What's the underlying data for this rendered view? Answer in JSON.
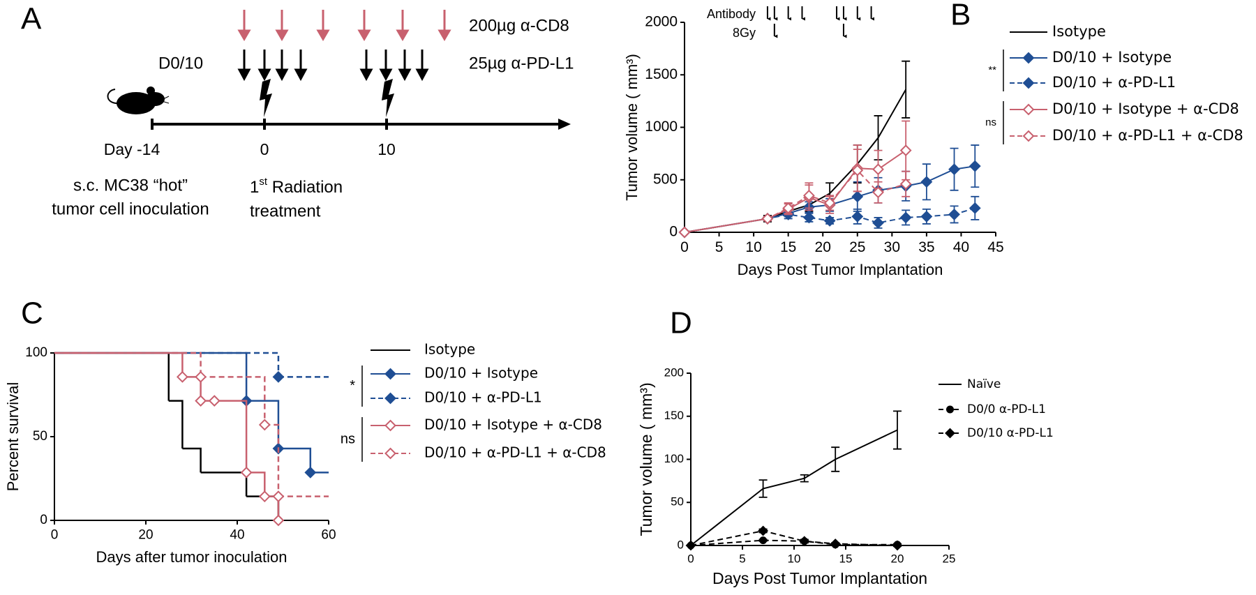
{
  "diagram": {
    "panel_label": "A",
    "cd8_label": "200µg α-CD8",
    "pdl1_label": "25µg α-PD-L1",
    "schedule_label": "D0/10",
    "day_labels": [
      "Day -14",
      "0",
      "10"
    ],
    "inoculation_label": [
      "s.c. MC38 “hot”",
      "tumor cell inoculation"
    ],
    "radiation_label": [
      "1",
      "st",
      " Radiation",
      "treatment"
    ]
  },
  "chart_data": [
    {
      "type": "line",
      "panel_label": "B",
      "xlabel": "Days Post Tumor Implantation",
      "ylabel": "Tumor volume ( mm³)",
      "xlim": [
        0,
        45
      ],
      "xticks": [
        0,
        5,
        10,
        15,
        20,
        25,
        30,
        35,
        40,
        45
      ],
      "ylim": [
        0,
        2000
      ],
      "yticks": [
        0,
        500,
        1000,
        1500,
        2000
      ],
      "antibody_label": "Antibody",
      "radiation_label": "8Gy",
      "antibody_days": [
        12,
        13,
        15,
        17,
        22,
        23,
        25,
        27
      ],
      "radiation_days": [
        13,
        23
      ],
      "significance": [
        "**",
        "ns"
      ],
      "series": [
        {
          "name": "Isotype",
          "color": "#000000",
          "dash": false,
          "x": [
            0,
            12,
            15,
            18,
            21,
            25,
            28,
            32
          ],
          "values": [
            0,
            130,
            200,
            260,
            370,
            650,
            900,
            1360
          ],
          "errors": [
            0,
            30,
            40,
            60,
            100,
            180,
            210,
            270
          ]
        },
        {
          "name": "D0/10 + Isotype",
          "color": "#1f4e94",
          "dash": false,
          "marker": "diamond",
          "filled": true,
          "x": [
            0,
            12,
            15,
            18,
            21,
            25,
            28,
            32,
            35,
            39,
            42
          ],
          "values": [
            0,
            130,
            180,
            240,
            260,
            340,
            400,
            440,
            480,
            600,
            630
          ],
          "errors": [
            0,
            20,
            30,
            50,
            60,
            140,
            120,
            140,
            170,
            200,
            200
          ]
        },
        {
          "name": "D0/10 + α-PD-L1",
          "color": "#1f4e94",
          "dash": true,
          "marker": "diamond",
          "filled": true,
          "x": [
            0,
            12,
            15,
            18,
            21,
            25,
            28,
            32,
            35,
            39,
            42
          ],
          "values": [
            0,
            130,
            170,
            140,
            110,
            150,
            90,
            140,
            150,
            170,
            230
          ],
          "errors": [
            0,
            20,
            40,
            40,
            30,
            70,
            50,
            70,
            70,
            80,
            110
          ]
        },
        {
          "name": "D0/10 + Isotype + α-CD8",
          "color": "#c8606e",
          "dash": false,
          "marker": "diamond",
          "filled": false,
          "x": [
            0,
            12,
            15,
            18,
            21,
            25,
            28,
            32
          ],
          "values": [
            0,
            130,
            220,
            330,
            260,
            610,
            600,
            780
          ],
          "errors": [
            0,
            20,
            50,
            120,
            80,
            220,
            180,
            280
          ]
        },
        {
          "name": "D0/10 + α-PD-L1 + α-CD8",
          "color": "#c8606e",
          "dash": true,
          "marker": "diamond",
          "filled": false,
          "x": [
            0,
            12,
            15,
            18,
            21,
            25,
            28,
            32
          ],
          "values": [
            0,
            130,
            230,
            350,
            280,
            590,
            380,
            460
          ],
          "errors": [
            0,
            20,
            50,
            120,
            70,
            200,
            100,
            120
          ]
        }
      ]
    },
    {
      "type": "step",
      "panel_label": "C",
      "xlabel": "Days after tumor inoculation",
      "ylabel": "Percent survival",
      "xlim": [
        0,
        60
      ],
      "xticks": [
        0,
        20,
        40,
        60
      ],
      "ylim": [
        0,
        100
      ],
      "yticks": [
        0,
        50,
        100
      ],
      "significance": [
        "*",
        "ns"
      ],
      "series": [
        {
          "name": "Isotype",
          "color": "#000000",
          "dash": false,
          "x": [
            0,
            25,
            28,
            32,
            42,
            49
          ],
          "values": [
            100,
            71.4,
            42.9,
            28.6,
            14.3,
            0
          ]
        },
        {
          "name": "D0/10 + Isotype",
          "color": "#1f4e94",
          "dash": false,
          "marker": "diamond",
          "filled": true,
          "x": [
            0,
            42,
            49,
            56,
            60
          ],
          "values": [
            100,
            71.4,
            42.9,
            28.6,
            28.6
          ]
        },
        {
          "name": "D0/10 + α-PD-L1",
          "color": "#1f4e94",
          "dash": true,
          "marker": "diamond",
          "filled": true,
          "x": [
            0,
            49,
            60
          ],
          "values": [
            100,
            85.7,
            85.7
          ]
        },
        {
          "name": "D0/10 + Isotype + α-CD8",
          "color": "#c8606e",
          "dash": false,
          "marker": "diamond",
          "filled": false,
          "x": [
            0,
            28,
            32,
            35,
            42,
            46,
            49
          ],
          "values": [
            100,
            85.7,
            71.4,
            71.4,
            28.6,
            14.3,
            0
          ]
        },
        {
          "name": "D0/10 + α-PD-L1 + α-CD8",
          "color": "#c8606e",
          "dash": true,
          "marker": "diamond",
          "filled": false,
          "x": [
            0,
            32,
            46,
            49,
            60
          ],
          "values": [
            100,
            85.7,
            57.1,
            14.3,
            14.3
          ]
        }
      ]
    },
    {
      "type": "line",
      "panel_label": "D",
      "xlabel": "Days Post Tumor Implantation",
      "ylabel": "Tumor volume ( mm³)",
      "xlim": [
        0,
        25
      ],
      "xticks": [
        0,
        5,
        10,
        15,
        20,
        25
      ],
      "ylim": [
        0,
        200
      ],
      "yticks": [
        0,
        50,
        100,
        150,
        200
      ],
      "series": [
        {
          "name": "Naïve",
          "color": "#000000",
          "dash": false,
          "x": [
            0,
            7,
            11,
            14,
            20
          ],
          "values": [
            0,
            66,
            78,
            100,
            134
          ],
          "errors": [
            0,
            10,
            4,
            14,
            22
          ]
        },
        {
          "name": "D0/0 α-PD-L1",
          "color": "#000000",
          "dash": true,
          "marker": "circle",
          "filled": true,
          "x": [
            0,
            7,
            11,
            14,
            20
          ],
          "values": [
            0,
            6,
            5,
            1,
            1
          ],
          "errors": [
            0,
            1,
            1,
            1,
            1
          ]
        },
        {
          "name": "D0/10 α-PD-L1",
          "color": "#000000",
          "dash": true,
          "marker": "diamond",
          "filled": true,
          "x": [
            0,
            7,
            11,
            14,
            20
          ],
          "values": [
            0,
            17,
            5,
            2,
            0
          ],
          "errors": [
            0,
            2,
            2,
            1,
            1
          ]
        }
      ]
    }
  ]
}
